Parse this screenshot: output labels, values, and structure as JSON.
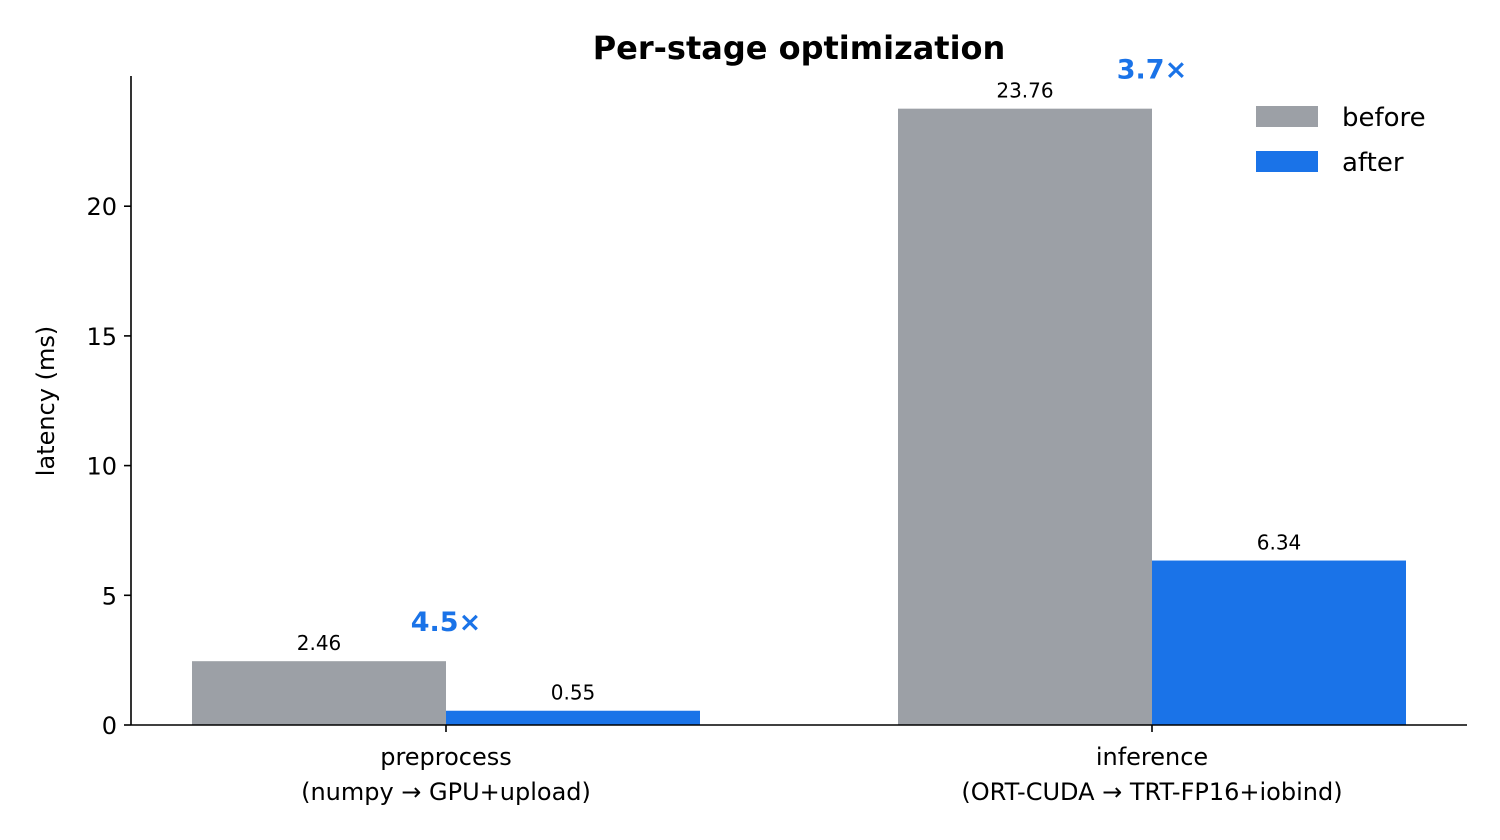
{
  "chart_data": {
    "type": "bar",
    "title": "Per-stage optimization",
    "xlabel": "",
    "ylabel": "latency (ms)",
    "ylim": [
      0,
      25
    ],
    "yticks": [
      0,
      5,
      10,
      15,
      20
    ],
    "categories": [
      {
        "line1": "preprocess",
        "line2": "(numpy → GPU+upload)"
      },
      {
        "line1": "inference",
        "line2": "(ORT-CUDA → TRT-FP16+iobind)"
      }
    ],
    "series": [
      {
        "name": "before",
        "color": "#9ca0a6",
        "values": [
          2.46,
          23.76
        ],
        "labels": [
          "2.46",
          "23.76"
        ]
      },
      {
        "name": "after",
        "color": "#1a73e8",
        "values": [
          0.55,
          6.34
        ],
        "labels": [
          "0.55",
          "6.34"
        ]
      }
    ],
    "speedups": [
      "4.5×",
      "3.7×"
    ],
    "speedup_color": "#1a73e8",
    "legend_position": "top-right",
    "grid": false
  }
}
